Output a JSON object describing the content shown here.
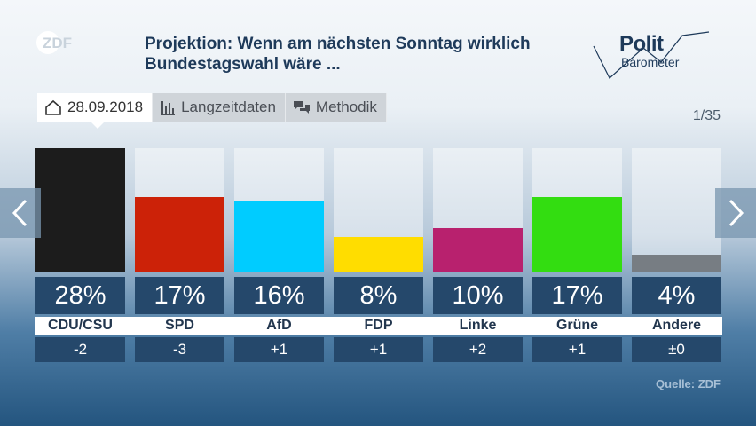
{
  "header": {
    "title_line1": "Projektion: Wenn am nächsten Sonntag wirklich",
    "title_line2": "Bundestagswahl wäre ...",
    "logo_polit": "Polit",
    "logo_barometer": "Barometer",
    "broadcaster_logo": "ZDF"
  },
  "tabs": [
    {
      "label": "28.09.2018",
      "icon": "home-icon",
      "active": true
    },
    {
      "label": "Langzeitdaten",
      "icon": "bar-chart-icon",
      "active": false
    },
    {
      "label": "Methodik",
      "icon": "speech-bubbles-icon",
      "active": false
    }
  ],
  "pager": "1/35",
  "source": "Quelle: ZDF",
  "nav": {
    "prev": "chevron-left-icon",
    "next": "chevron-right-icon"
  },
  "chart_data": {
    "type": "bar",
    "title": "Projektion: Wenn am nächsten Sonntag wirklich Bundestagswahl wäre ...",
    "categories": [
      "CDU/CSU",
      "SPD",
      "AfD",
      "FDP",
      "Linke",
      "Grüne",
      "Andere"
    ],
    "values": [
      28,
      17,
      16,
      8,
      10,
      17,
      4
    ],
    "value_labels": [
      "28%",
      "17%",
      "16%",
      "8%",
      "10%",
      "17%",
      "4%"
    ],
    "changes": [
      "-2",
      "-3",
      "+1",
      "+1",
      "+2",
      "+1",
      "±0"
    ],
    "colors": [
      "#1c1c1c",
      "#cc2208",
      "#00ccff",
      "#ffdd00",
      "#b8216e",
      "#33dd11",
      "#777d83"
    ],
    "ylim": [
      0,
      28
    ],
    "grid": false,
    "legend": "none"
  }
}
